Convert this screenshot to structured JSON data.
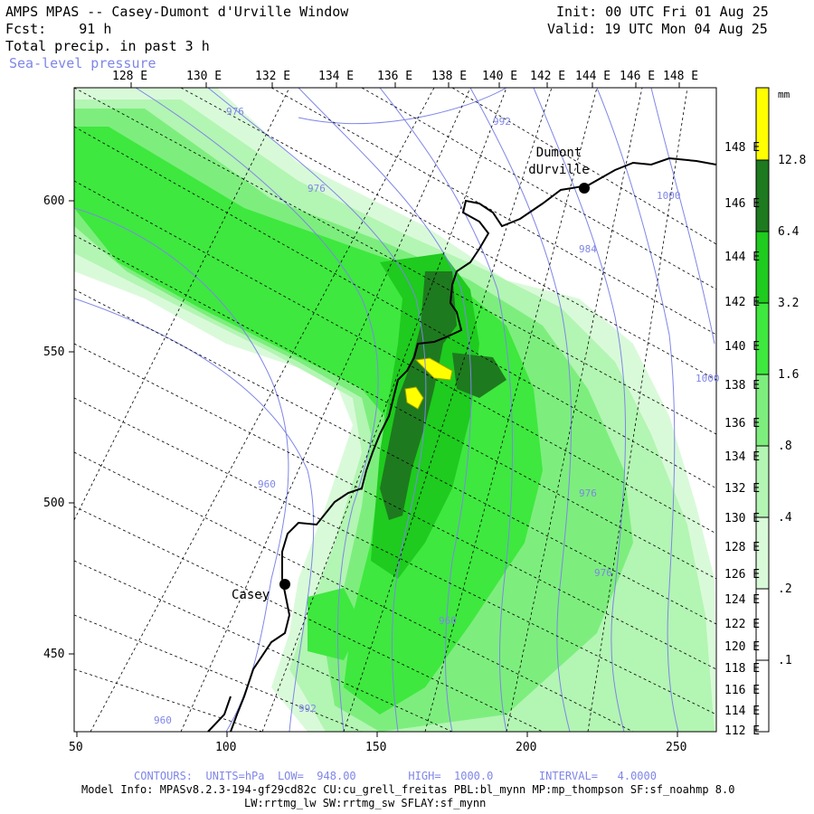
{
  "header": {
    "title": "AMPS MPAS -- Casey-Dumont d'Urville Window",
    "fcst": "Fcst:    91 h",
    "field": "Total precip. in past 3 h",
    "overlay": "Sea-level pressure",
    "init": "Init: 00 UTC Fri 01 Aug 25",
    "valid": "Valid: 19 UTC Mon 04 Aug 25"
  },
  "top_lon_labels": [
    "128 E",
    "130 E",
    "132 E",
    "134 E",
    "136 E",
    "138 E",
    "140 E",
    "142 E",
    "144 E",
    "146 E",
    "148 E"
  ],
  "right_lon_labels": [
    "148 E",
    "146 E",
    "144 E",
    "142 E",
    "140 E",
    "138 E",
    "136 E",
    "134 E",
    "132 E",
    "130 E",
    "128 E",
    "126 E",
    "124 E",
    "122 E",
    "120 E",
    "118 E",
    "116 E",
    "114 E",
    "112 E"
  ],
  "left_axis": [
    "600",
    "550",
    "500",
    "450"
  ],
  "bottom_axis": [
    "50",
    "100",
    "150",
    "200",
    "250"
  ],
  "places": {
    "dumont": "Dumont dUrville",
    "casey": "Casey"
  },
  "contour_labels": [
    "976",
    "976",
    "992",
    "960",
    "960",
    "960",
    "976",
    "976",
    "992",
    "984",
    "1000",
    "1000"
  ],
  "legend": {
    "unit": "mm",
    "levels": [
      "12.8",
      "6.4",
      "3.2",
      "1.6",
      ".8",
      ".4",
      ".2",
      ".1"
    ],
    "colors": [
      "#ffff00",
      "#1e7a1e",
      "#1ecb1e",
      "#3ee83e",
      "#7dee7d",
      "#b3f5b3",
      "#d9fad9",
      "#ffffff"
    ]
  },
  "footer": {
    "contours": "CONTOURS:  UNITS=hPa  LOW=  948.00        HIGH=  1000.0       INTERVAL=   4.0000",
    "model_info": "Model Info: MPASv8.2.3-194-gf29cd82c CU:cu_grell_freitas PBL:bl_mynn MP:mp_thompson SF:sf_noahmp 8.0",
    "model_info2": "LW:rrtmg_lw SW:rrtmg_sw SFLAY:sf_mynn"
  },
  "colors": {
    "contour": "#7f86e6",
    "grid": "#000000",
    "coast": "#000000"
  }
}
